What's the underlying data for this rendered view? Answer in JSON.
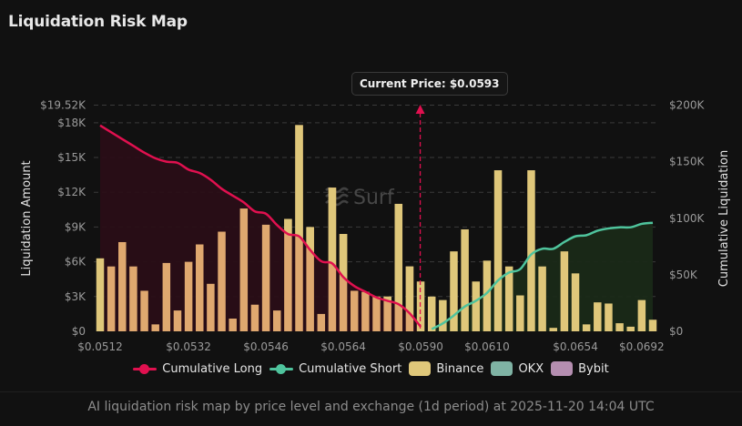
{
  "title": "Liquidation Risk Map",
  "caption": "AI liquidation risk map by price level and exchange (1d period) at 2025-11-20 14:04 UTC",
  "current_price_label": "Current Price: $0.0593",
  "watermark": "Surf",
  "colors": {
    "long": "#e0104f",
    "long_fill": "#2a0e17",
    "short": "#4fc49d",
    "short_fill": "#1a2a18",
    "binance": "#dfc77a",
    "binance_long_side": "#dfa86f",
    "okx": "#7fb3a4",
    "bybit": "#b58eb0",
    "grid": "#3a3a3a",
    "current_price": "#e0104f"
  },
  "legend": [
    {
      "name": "Cumulative Long",
      "kind": "line",
      "color": "#e0104f"
    },
    {
      "name": "Cumulative Short",
      "kind": "line",
      "color": "#4fc49d"
    },
    {
      "name": "Binance",
      "kind": "box",
      "color": "#dfc77a"
    },
    {
      "name": "OKX",
      "kind": "box",
      "color": "#7fb3a4"
    },
    {
      "name": "Bybit",
      "kind": "box",
      "color": "#b58eb0"
    }
  ],
  "chart_data": {
    "type": "bar",
    "title": "Liquidation Risk Map",
    "xlabel": "",
    "ylabel": "Liquidation Amount",
    "y2label": "Cumulative Liquidation",
    "ylim": [
      0,
      19520
    ],
    "y2lim": [
      0,
      200000
    ],
    "yticks": [
      "$0",
      "$3K",
      "$6K",
      "$9K",
      "$12K",
      "$15K",
      "$18K",
      "$19.52K"
    ],
    "ytick_values": [
      0,
      3000,
      6000,
      9000,
      12000,
      15000,
      18000,
      19520
    ],
    "y2ticks": [
      "$0",
      "$50K",
      "$100K",
      "$150K",
      "$200K"
    ],
    "y2tick_values": [
      0,
      50000,
      100000,
      150000,
      200000
    ],
    "xticks": [
      "$0.0512",
      "$0.0532",
      "$0.0546",
      "$0.0564",
      "$0.0590",
      "$0.0610",
      "$0.0654",
      "$0.0692"
    ],
    "xtick_indices": [
      0,
      8,
      15,
      22,
      29,
      35,
      43,
      49
    ],
    "current_price": 0.0593,
    "current_price_index": 29.0,
    "grid": true,
    "legend_position": "bottom",
    "series": [
      {
        "name": "Binance",
        "values": [
          6300,
          5600,
          7700,
          5600,
          3500,
          600,
          5900,
          1800,
          6000,
          7500,
          4100,
          8600,
          1100,
          10600,
          2300,
          9200,
          1800,
          9700,
          17800,
          9000,
          1500,
          12400,
          8400,
          3500,
          3400,
          3000,
          3000,
          11000,
          5600,
          4300,
          3000,
          2700,
          6900,
          8800,
          4300,
          6100,
          13900,
          5600,
          3100,
          13900,
          5600,
          300,
          6900,
          5000,
          600,
          2500,
          2400,
          700,
          400,
          2700,
          1000
        ]
      },
      {
        "name": "Cumulative Long",
        "axis": "right",
        "start_index": 0,
        "values": [
          182000,
          176000,
          170000,
          164000,
          158000,
          153000,
          150000,
          149000,
          143000,
          140000,
          134000,
          126000,
          120000,
          114000,
          106000,
          104000,
          94000,
          86000,
          84000,
          72000,
          62000,
          60000,
          48000,
          40000,
          35000,
          30000,
          27000,
          24000,
          16000,
          4000
        ]
      },
      {
        "name": "Cumulative Short",
        "axis": "right",
        "start_index": 30,
        "values": [
          2000,
          7000,
          14000,
          22000,
          27000,
          34000,
          45000,
          52000,
          55000,
          68000,
          73000,
          73000,
          79000,
          84000,
          85000,
          89000,
          91000,
          92000,
          92000,
          95000,
          96000
        ]
      }
    ]
  }
}
